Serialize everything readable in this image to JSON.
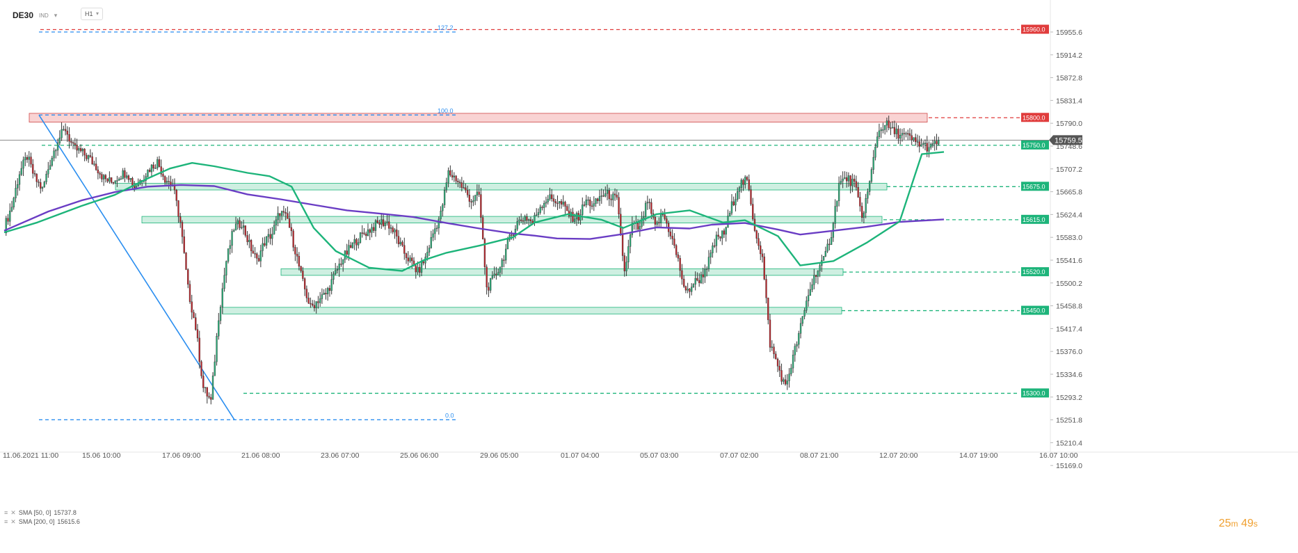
{
  "header": {
    "symbol": "DE30",
    "indicator_label": "IND",
    "timeframe": "H1"
  },
  "legend": [
    {
      "label": "SMA [50, 0]",
      "value": "15737.8",
      "color": "#1db47a"
    },
    {
      "label": "SMA [200, 0]",
      "value": "15615.6",
      "color": "#6a3dc4"
    }
  ],
  "timer": {
    "minutes": "25",
    "m": "m",
    "seconds": "49",
    "s": "s"
  },
  "chart_data": {
    "type": "candlestick",
    "y_ticks": [
      "15955.6",
      "15914.2",
      "15872.8",
      "15831.4",
      "15790.0",
      "15748.6",
      "15707.2",
      "15665.8",
      "15624.4",
      "15583.0",
      "15541.6",
      "15500.2",
      "15458.8",
      "15417.4",
      "15376.0",
      "15334.6",
      "15293.2",
      "15251.8",
      "15210.4",
      "15169.0"
    ],
    "ylim": [
      15169.0,
      15955.6
    ],
    "x_ticks": [
      "11.06.2021 11:00",
      "15.06 10:00",
      "17.06 09:00",
      "21.06 08:00",
      "23.06 07:00",
      "25.06 06:00",
      "29.06 05:00",
      "01.07 04:00",
      "05.07 03:00",
      "07.07 02:00",
      "08.07 21:00",
      "12.07 20:00",
      "14.07 19:00",
      "16.07 10:00"
    ],
    "current_price": "15759.5",
    "horizontal_levels": [
      {
        "label": "15960.0",
        "value": 15960.0,
        "color": "#e03c3c"
      },
      {
        "label": "15800.0",
        "value": 15800.0,
        "color": "#e03c3c"
      },
      {
        "label": "15750.0",
        "value": 15750.0,
        "color": "#1db47a"
      },
      {
        "label": "15675.0",
        "value": 15675.0,
        "color": "#1db47a"
      },
      {
        "label": "15615.0",
        "value": 15615.0,
        "color": "#1db47a"
      },
      {
        "label": "15520.0",
        "value": 15520.0,
        "color": "#1db47a"
      },
      {
        "label": "15450.0",
        "value": 15450.0,
        "color": "#1db47a"
      },
      {
        "label": "15300.0",
        "value": 15300.0,
        "color": "#1db47a"
      }
    ],
    "fibonacci": [
      {
        "label": "127.2",
        "value": 15955.6
      },
      {
        "label": "100.0",
        "value": 15805.0
      },
      {
        "label": "0.0",
        "value": 15252.0
      }
    ],
    "sma50_path": [
      [
        0,
        15592
      ],
      [
        3,
        15610
      ],
      [
        7,
        15640
      ],
      [
        10,
        15660
      ],
      [
        13,
        15690
      ],
      [
        15,
        15708
      ],
      [
        17,
        15718
      ],
      [
        19,
        15712
      ],
      [
        22,
        15700
      ],
      [
        24,
        15694
      ],
      [
        26,
        15675
      ],
      [
        28,
        15600
      ],
      [
        30,
        15558
      ],
      [
        33,
        15528
      ],
      [
        36,
        15522
      ],
      [
        38,
        15542
      ],
      [
        40,
        15555
      ],
      [
        43,
        15568
      ],
      [
        46,
        15583
      ],
      [
        48,
        15610
      ],
      [
        51,
        15625
      ],
      [
        54,
        15615
      ],
      [
        56,
        15600
      ],
      [
        59,
        15625
      ],
      [
        62,
        15632
      ],
      [
        65,
        15610
      ],
      [
        67,
        15614
      ],
      [
        70,
        15585
      ],
      [
        72,
        15532
      ],
      [
        75,
        15540
      ],
      [
        78,
        15573
      ],
      [
        81,
        15612
      ],
      [
        83,
        15734
      ],
      [
        85,
        15738
      ]
    ],
    "sma200_path": [
      [
        0,
        15595
      ],
      [
        4,
        15630
      ],
      [
        7,
        15650
      ],
      [
        10,
        15665
      ],
      [
        13,
        15675
      ],
      [
        16,
        15678
      ],
      [
        19,
        15676
      ],
      [
        22,
        15661
      ],
      [
        25,
        15652
      ],
      [
        28,
        15642
      ],
      [
        31,
        15632
      ],
      [
        34,
        15626
      ],
      [
        37,
        15620
      ],
      [
        40,
        15609
      ],
      [
        43,
        15599
      ],
      [
        46,
        15590
      ],
      [
        48,
        15586
      ],
      [
        50,
        15581
      ],
      [
        53,
        15580
      ],
      [
        56,
        15589
      ],
      [
        59,
        15601
      ],
      [
        62,
        15599
      ],
      [
        64,
        15606
      ],
      [
        67,
        15609
      ],
      [
        70,
        15597
      ],
      [
        72,
        15588
      ],
      [
        75,
        15595
      ],
      [
        78,
        15602
      ],
      [
        81,
        15611
      ],
      [
        85,
        15615.6
      ]
    ],
    "candles_close": [
      15600,
      15640,
      15700,
      15730,
      15690,
      15670,
      15720,
      15760,
      15780,
      15745,
      15738,
      15728,
      15712,
      15690,
      15683,
      15695,
      15702,
      15675,
      15690,
      15708,
      15720,
      15690,
      15678,
      15610,
      15490,
      15420,
      15310,
      15285,
      15440,
      15540,
      15600,
      15610,
      15570,
      15540,
      15575,
      15590,
      15630,
      15615,
      15560,
      15500,
      15455,
      15470,
      15480,
      15510,
      15540,
      15560,
      15578,
      15590,
      15600,
      15610,
      15610,
      15590,
      15560,
      15540,
      15520,
      15545,
      15590,
      15625,
      15700,
      15690,
      15670,
      15650,
      15660,
      15490,
      15510,
      15540,
      15580,
      15610,
      15620,
      15610,
      15640,
      15655,
      15650,
      15640,
      15620,
      15620,
      15650,
      15640,
      15660,
      15660,
      15650,
      15520,
      15605,
      15598,
      15650,
      15600,
      15625,
      15590,
      15540,
      15480,
      15500,
      15510,
      15540,
      15580,
      15590,
      15640,
      15680,
      15685,
      15600,
      15545,
      15390,
      15350,
      15310,
      15365,
      15420,
      15480,
      15520,
      15540,
      15590,
      15680,
      15690,
      15680,
      15620,
      15680,
      15770,
      15790,
      15775,
      15770,
      15765,
      15755,
      15750,
      15745,
      15759.5
    ]
  }
}
